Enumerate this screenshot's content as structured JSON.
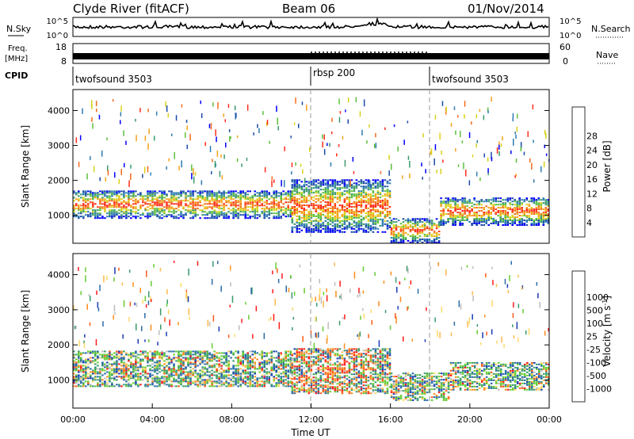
{
  "header": {
    "title": "Clyde River (fitACF)",
    "beam": "Beam 06",
    "date": "01/Nov/2014"
  },
  "top_panel": {
    "left_label": "N.Sky",
    "right_label": "N.Search",
    "ticks_left": [
      "10^5",
      "10^0"
    ],
    "ticks_right": [
      "10^5",
      "10^0"
    ]
  },
  "freq_panel": {
    "left_label_1": "Freq.",
    "left_label_2": "[MHz]",
    "right_label": "Nave",
    "ticks_left": [
      "18",
      "8"
    ],
    "ticks_right": [
      "60",
      "0"
    ]
  },
  "cpid": {
    "label": "CPID",
    "segments": [
      {
        "start_hour": 0,
        "name": "twofsound 3503"
      },
      {
        "start_hour": 12,
        "name": "rbsp 200"
      },
      {
        "start_hour": 18,
        "name": "twofsound 3503"
      }
    ]
  },
  "chart_data": [
    {
      "type": "heatmap",
      "title": "",
      "xlabel": "",
      "ylabel": "Slant Range [km]",
      "x_range_hours": [
        0,
        24
      ],
      "ylim": [
        200,
        4600
      ],
      "yticks": [
        "1000",
        "2000",
        "3000",
        "4000"
      ],
      "colorbar": {
        "label": "Power [dB]",
        "ticks": [
          "4",
          "8",
          "12",
          "16",
          "20",
          "24",
          "28"
        ],
        "colors": [
          "#0000ff",
          "#1a4aa8",
          "#2e7bb3",
          "#3a9a6a",
          "#5cbf3a",
          "#d8d21b",
          "#f5a21b",
          "#f56a1b",
          "#ff2b1b"
        ]
      },
      "bands": [
        {
          "from_hour": 0,
          "to_hour": 11,
          "range_min": 900,
          "range_max": 1700
        },
        {
          "from_hour": 11,
          "to_hour": 16,
          "range_min": 500,
          "range_max": 2000
        },
        {
          "from_hour": 16,
          "to_hour": 18.5,
          "range_min": 200,
          "range_max": 900
        },
        {
          "from_hour": 18.5,
          "to_hour": 24,
          "range_min": 700,
          "range_max": 1500
        }
      ]
    },
    {
      "type": "heatmap",
      "title": "",
      "xlabel": "Time UT",
      "ylabel": "Slant Range [km]",
      "x_range_hours": [
        0,
        24
      ],
      "ylim": [
        200,
        4600
      ],
      "yticks": [
        "1000",
        "2000",
        "3000",
        "4000"
      ],
      "xticks": [
        "00:00",
        "04:00",
        "08:00",
        "12:00",
        "16:00",
        "20:00",
        "00:00"
      ],
      "colorbar": {
        "label": "Velocity [m s",
        "label_sup": "-1",
        "label_end": "]",
        "ticks": [
          "-1000",
          "-500",
          "-100",
          "-25",
          "25",
          "100",
          "500",
          "1000"
        ],
        "colors": [
          "#ff1a1a",
          "#ff5a1a",
          "#ff8c1a",
          "#ffb84d",
          "#ffd966",
          "#bdbdbd",
          "#66cc33",
          "#3a9a6a",
          "#2a6aa8",
          "#1a3ab3"
        ]
      },
      "bands": [
        {
          "from_hour": 0,
          "to_hour": 11,
          "range_min": 800,
          "range_max": 1800
        },
        {
          "from_hour": 11,
          "to_hour": 16,
          "range_min": 600,
          "range_max": 1900
        },
        {
          "from_hour": 16,
          "to_hour": 19,
          "range_min": 400,
          "range_max": 1200
        },
        {
          "from_hour": 19,
          "to_hour": 24,
          "range_min": 700,
          "range_max": 1500
        }
      ]
    }
  ]
}
